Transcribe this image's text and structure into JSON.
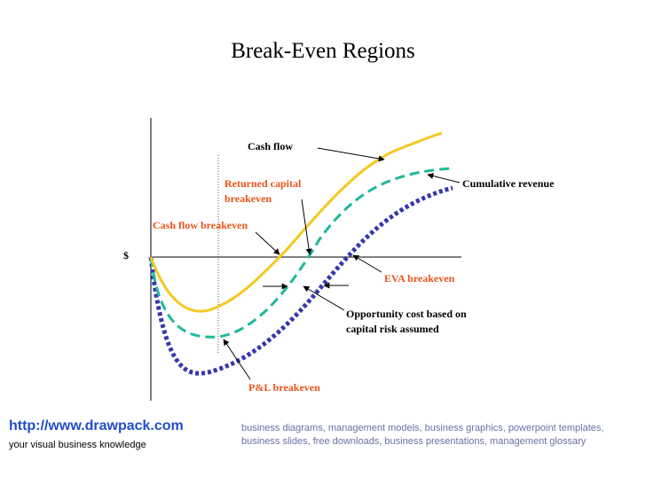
{
  "title": "Break-Even Regions",
  "axis": {
    "y_label": "$"
  },
  "labels": {
    "cash_flow": "Cash flow",
    "returned_capital_line1": "Returned capital",
    "returned_capital_line2": "breakeven",
    "cumulative_revenue": "Cumulative revenue",
    "cash_flow_breakeven": "Cash flow breakeven",
    "eva_breakeven": "EVA breakeven",
    "opportunity_cost_line1": "Opportunity cost based on",
    "opportunity_cost_line2": "capital risk assumed",
    "pl_breakeven": "P&L breakeven"
  },
  "colors": {
    "cash_flow_curve": "#f5c81e",
    "revenue_curve": "#1fb89a",
    "eva_curve": "#3636b0",
    "orange_text": "#e8541c",
    "footer_link": "#1f4fc8",
    "footer_desc": "#6a6fa8"
  },
  "footer": {
    "url": "http://www.drawpack.com",
    "tagline": "your visual business knowledge",
    "description": "business diagrams, management models, business graphics, powerpoint templates, business slides, free downloads, business presentations, management glossary"
  }
}
